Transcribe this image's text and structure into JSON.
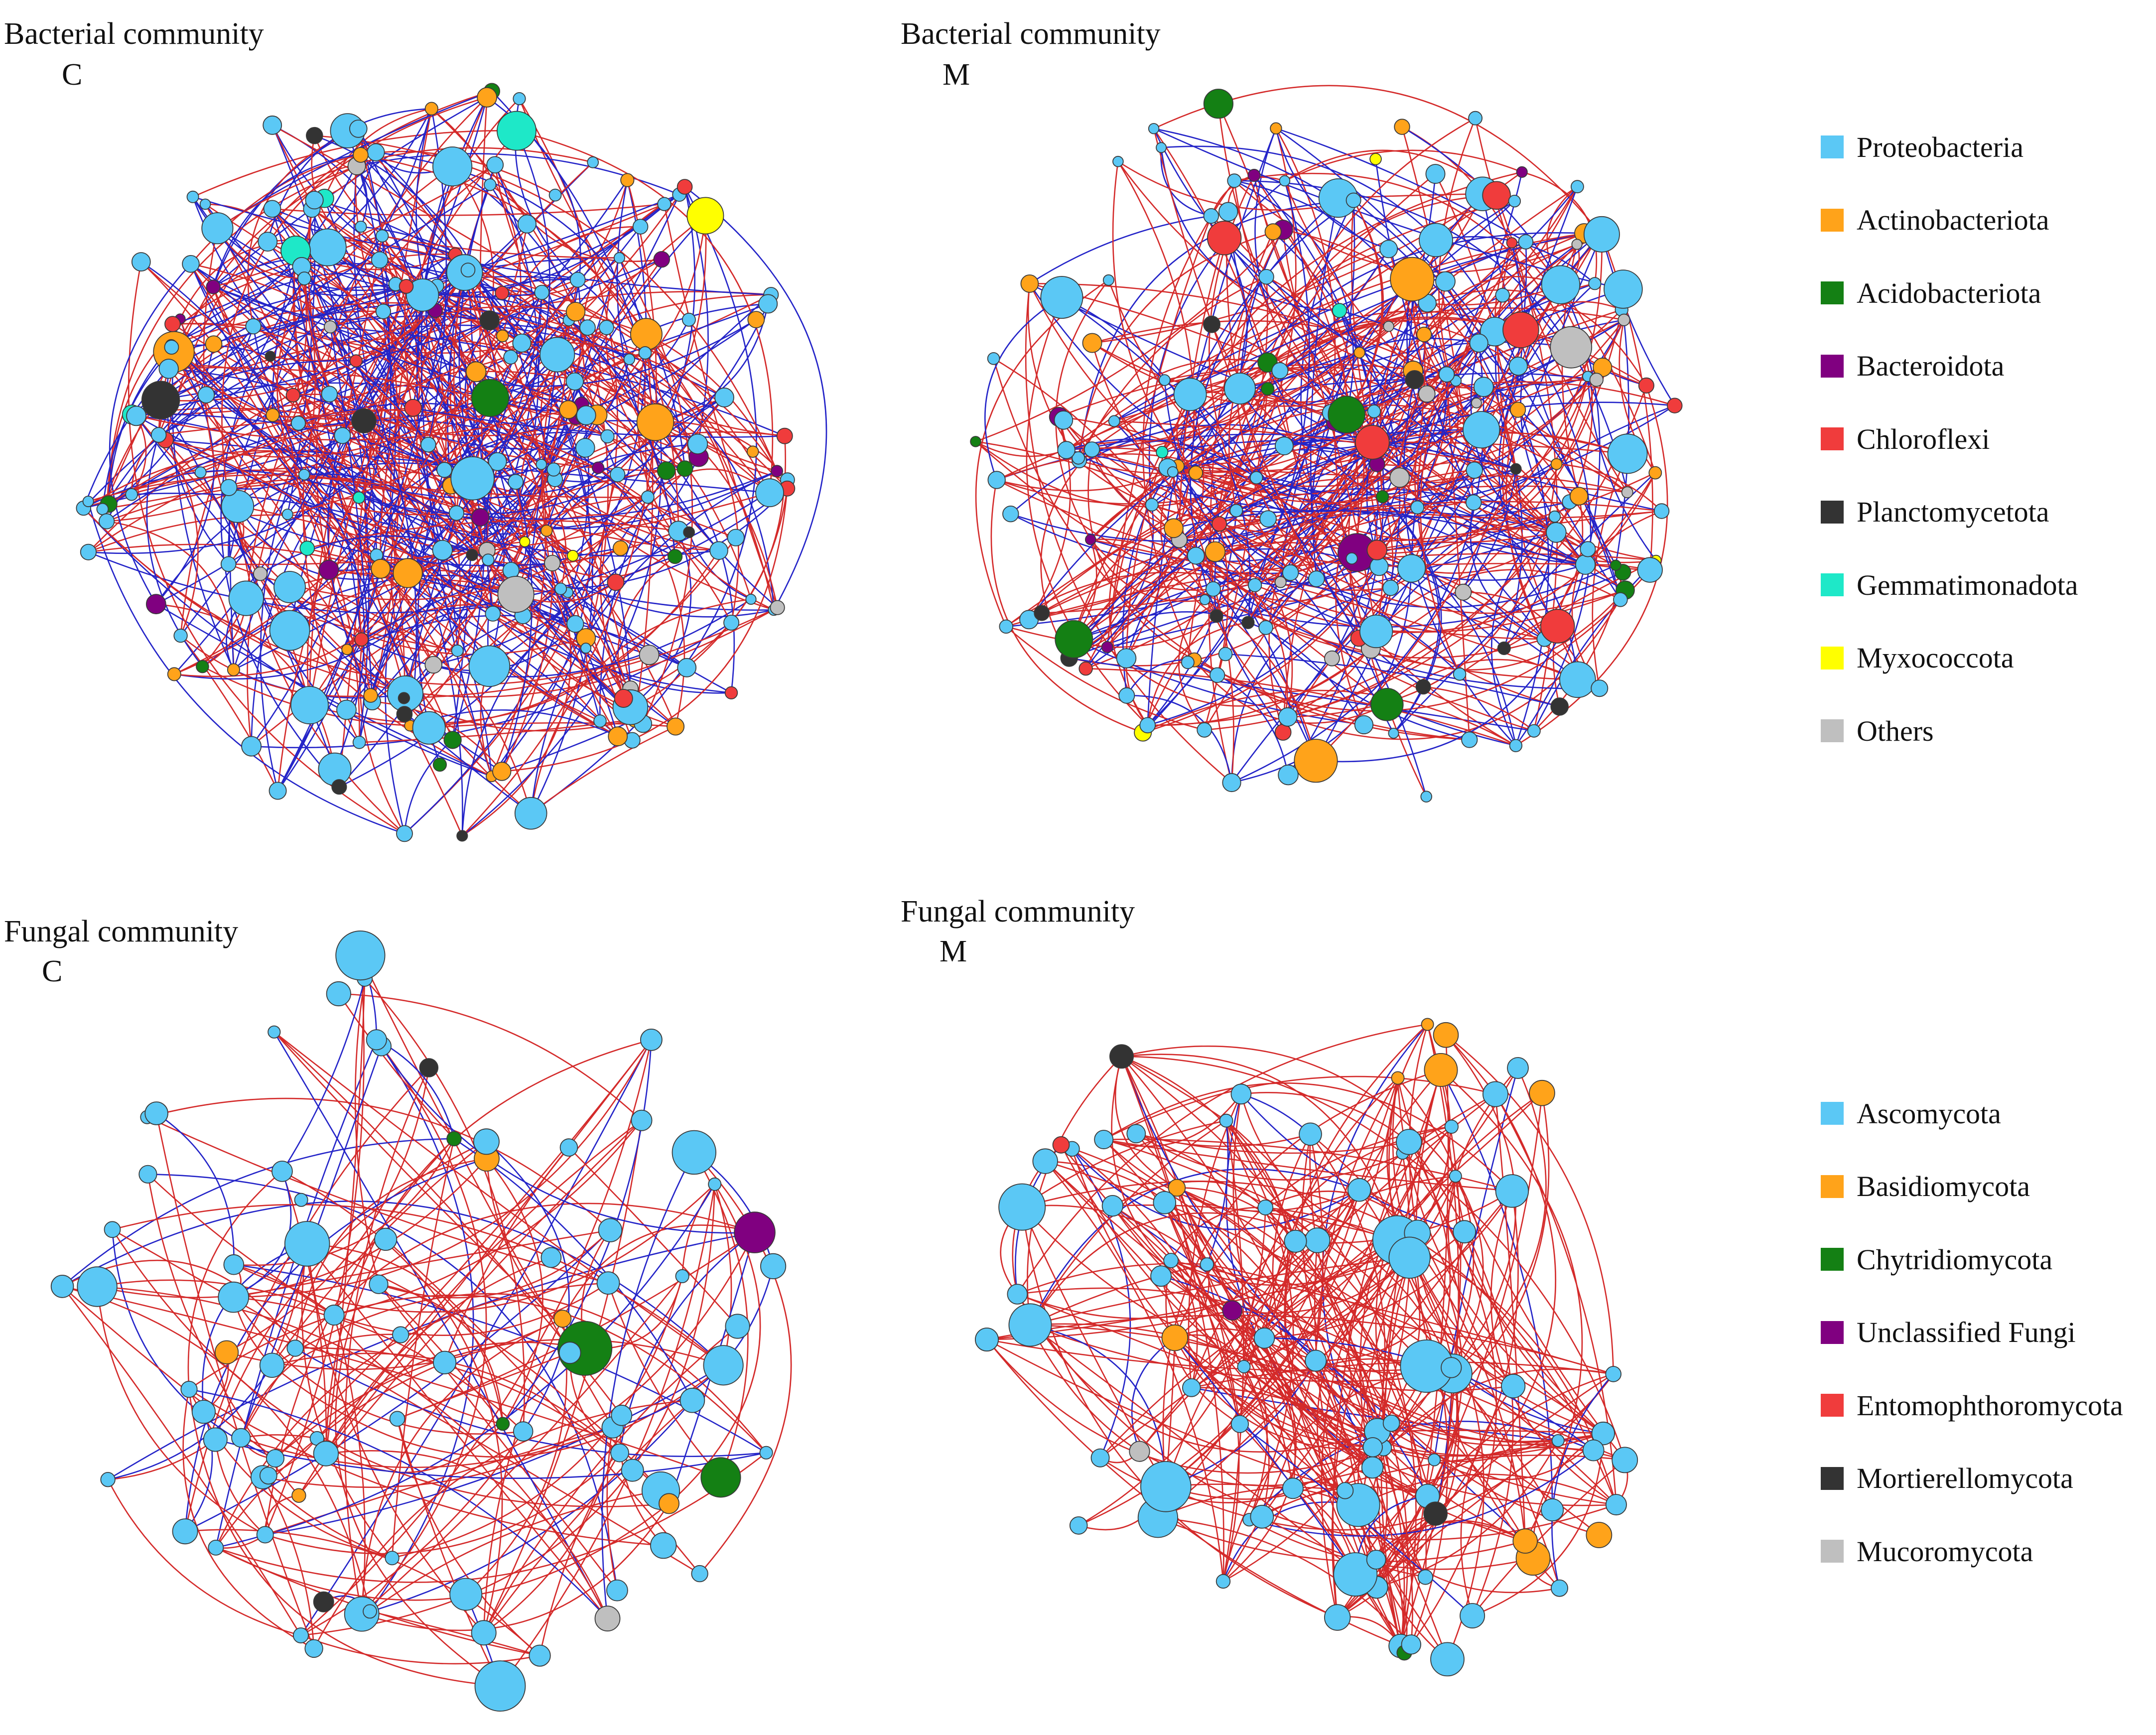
{
  "panels": [
    {
      "id": "bact-c",
      "title": "Bacterial community",
      "sub": "C",
      "kind": "bacteria",
      "seed": 11,
      "nodes": 230,
      "edges": 560
    },
    {
      "id": "bact-m",
      "title": "Bacterial community",
      "sub": "M",
      "kind": "bacteria",
      "seed": 23,
      "nodes": 190,
      "edges": 470
    },
    {
      "id": "fung-c",
      "title": "Fungal community",
      "sub": "C",
      "kind": "fungi",
      "seed": 37,
      "nodes": 85,
      "edges": 190
    },
    {
      "id": "fung-m",
      "title": "Fungal community",
      "sub": "M",
      "kind": "fungi",
      "seed": 53,
      "nodes": 90,
      "edges": 320
    }
  ],
  "legends": {
    "bacteria": [
      {
        "label": "Proteobacteria",
        "color": "#5bc8f5"
      },
      {
        "label": "Actinobacteriota",
        "color": "#ffa31a"
      },
      {
        "label": "Acidobacteriota",
        "color": "#148014"
      },
      {
        "label": "Bacteroidota",
        "color": "#800080"
      },
      {
        "label": "Chloroflexi",
        "color": "#f03c3c"
      },
      {
        "label": "Planctomycetota",
        "color": "#333333"
      },
      {
        "label": "Gemmatimonadota",
        "color": "#1ee8c8"
      },
      {
        "label": "Myxococcota",
        "color": "#ffff00"
      },
      {
        "label": "Others",
        "color": "#bfbfbf"
      }
    ],
    "fungi": [
      {
        "label": "Ascomycota",
        "color": "#5bc8f5"
      },
      {
        "label": "Basidiomycota",
        "color": "#ffa31a"
      },
      {
        "label": "Chytridiomycota",
        "color": "#148014"
      },
      {
        "label": "Unclassified Fungi",
        "color": "#800080"
      },
      {
        "label": "Entomophthoromycota",
        "color": "#f03c3c"
      },
      {
        "label": "Mortierellomycota",
        "color": "#333333"
      },
      {
        "label": "Mucoromycota",
        "color": "#bfbfbf"
      }
    ]
  },
  "edge_colors": {
    "positive": "#d42a2a",
    "negative": "#2424c8"
  },
  "node_mix": {
    "bacteria": [
      0.55,
      0.12,
      0.07,
      0.06,
      0.06,
      0.05,
      0.02,
      0.02,
      0.05
    ],
    "fungi": [
      0.86,
      0.07,
      0.02,
      0.01,
      0.01,
      0.02,
      0.01
    ]
  },
  "negative_edge_share": {
    "bact-c": 0.45,
    "bact-m": 0.35,
    "fung-c": 0.25,
    "fung-m": 0.08
  }
}
